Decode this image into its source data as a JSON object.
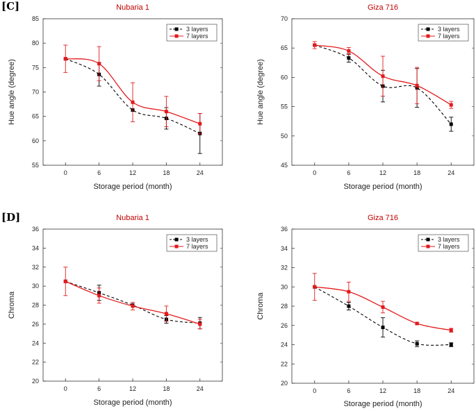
{
  "panel_labels": [
    "[C]",
    "[D]"
  ],
  "colors": {
    "series1": "#000000",
    "series2": "#e31a1c",
    "title": "#c00000"
  },
  "chart_data": [
    {
      "type": "line",
      "title": "Nubaria 1",
      "xlabel": "Storage period (month)",
      "ylabel": "Hue angle (degree)",
      "x": [
        0,
        6,
        12,
        18,
        24
      ],
      "xlim": [
        -4,
        28
      ],
      "ylim": [
        55,
        85
      ],
      "yticks": [
        55,
        60,
        65,
        70,
        75,
        80,
        85
      ],
      "legend_position": "top-right",
      "series": [
        {
          "name": "3 layers",
          "values": [
            76.8,
            73.6,
            66.3,
            64.6,
            61.5
          ],
          "errors": [
            0,
            2.4,
            0,
            2.2,
            4.1
          ]
        },
        {
          "name": "7 layers",
          "values": [
            76.8,
            75.8,
            67.9,
            66.0,
            63.5
          ],
          "errors": [
            2.8,
            3.5,
            4.0,
            3.1,
            2.1
          ]
        }
      ]
    },
    {
      "type": "line",
      "title": "Giza 716",
      "xlabel": "Storage period (month)",
      "ylabel": "Hue angle (degree)",
      "x": [
        0,
        6,
        12,
        18,
        24
      ],
      "xlim": [
        -4,
        28
      ],
      "ylim": [
        45,
        70
      ],
      "yticks": [
        45,
        50,
        55,
        60,
        65,
        70
      ],
      "legend_position": "top-right",
      "series": [
        {
          "name": "3 layers",
          "values": [
            65.5,
            63.3,
            58.5,
            58.2,
            52.0
          ],
          "errors": [
            0,
            0.7,
            2.7,
            3.3,
            1.2
          ]
        },
        {
          "name": "7 layers",
          "values": [
            65.5,
            64.5,
            60.2,
            58.6,
            55.3
          ],
          "errors": [
            0.6,
            0.6,
            3.4,
            3.1,
            0.6
          ]
        }
      ]
    },
    {
      "type": "line",
      "title": "Nubaria 1",
      "xlabel": "Storage period (month)",
      "ylabel": "Chroma",
      "x": [
        0,
        6,
        12,
        18,
        24
      ],
      "xlim": [
        -4,
        28
      ],
      "ylim": [
        20,
        36
      ],
      "yticks": [
        20,
        22,
        24,
        26,
        28,
        30,
        32,
        34,
        36
      ],
      "legend_position": "top-right",
      "series": [
        {
          "name": "3 layers",
          "values": [
            30.5,
            29.3,
            28.0,
            26.5,
            26.1
          ],
          "errors": [
            0,
            0.8,
            0,
            0.4,
            0.6
          ]
        },
        {
          "name": "7 layers",
          "values": [
            30.5,
            29.0,
            27.9,
            27.1,
            26.0
          ],
          "errors": [
            1.5,
            0.8,
            0.4,
            0.8,
            0.5
          ]
        }
      ]
    },
    {
      "type": "line",
      "title": "Giza 716",
      "xlabel": "Storage period (month)",
      "ylabel": "Chroma",
      "x": [
        0,
        6,
        12,
        18,
        24
      ],
      "xlim": [
        -4,
        28
      ],
      "ylim": [
        20,
        36
      ],
      "yticks": [
        20,
        22,
        24,
        26,
        28,
        30,
        32,
        34,
        36
      ],
      "legend_position": "top-right",
      "series": [
        {
          "name": "3 layers",
          "values": [
            30.0,
            28.0,
            25.8,
            24.1,
            24.0
          ],
          "errors": [
            0,
            0.4,
            1.0,
            0.3,
            0.2
          ]
        },
        {
          "name": "7 layers",
          "values": [
            30.0,
            29.5,
            27.9,
            26.2,
            25.5
          ],
          "errors": [
            1.4,
            1.0,
            0.6,
            0.1,
            0.2
          ]
        }
      ]
    }
  ]
}
